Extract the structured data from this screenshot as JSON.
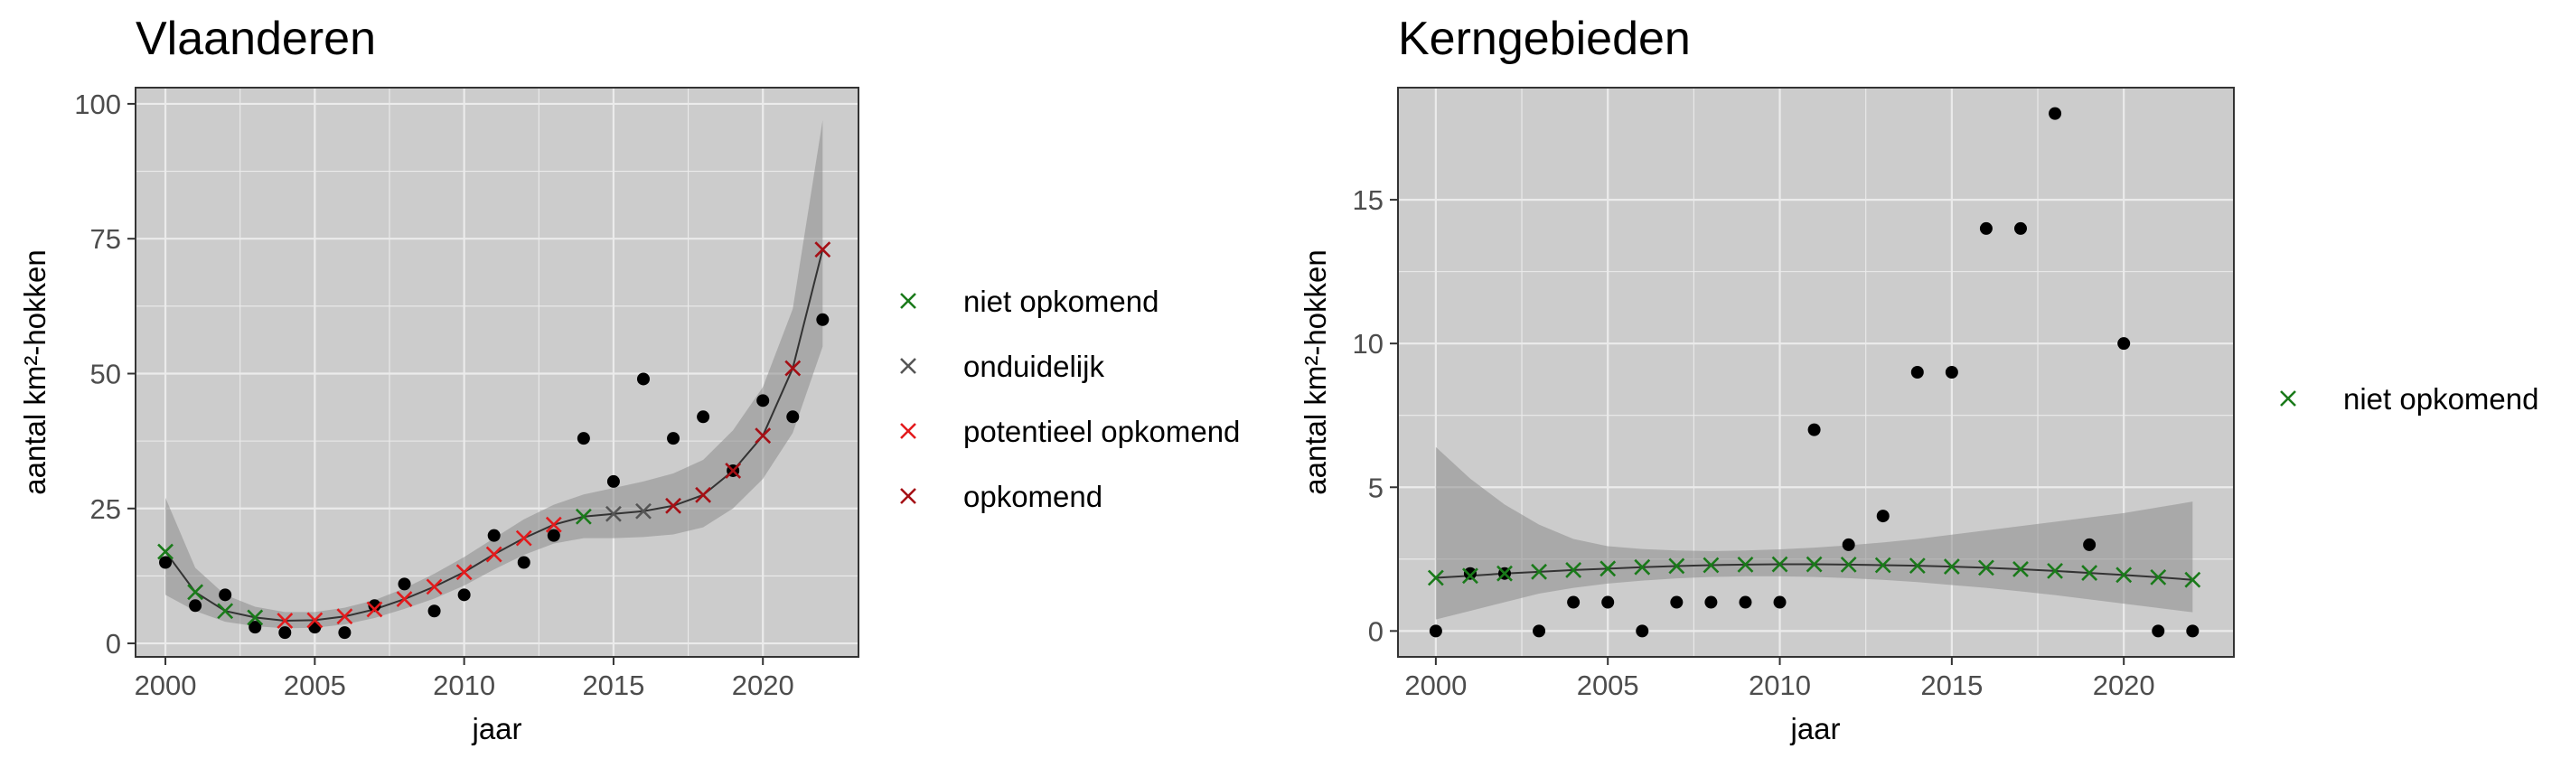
{
  "chart_data": [
    {
      "type": "scatter",
      "title": "Vlaanderen",
      "xlabel": "jaar",
      "ylabel": "aantal km²-hokken",
      "xlim": [
        1999,
        2023.2
      ],
      "ylim": [
        -2.5,
        103
      ],
      "x_ticks": [
        2000,
        2005,
        2010,
        2015,
        2020
      ],
      "y_ticks": [
        0,
        25,
        50,
        75,
        100
      ],
      "grid": true,
      "legend_position": "right",
      "legend": [
        {
          "label": "niet opkomend",
          "color": "#1a7a1a"
        },
        {
          "label": "onduidelijk",
          "color": "#555555"
        },
        {
          "label": "potentieel opkomend",
          "color": "#e31a1c"
        },
        {
          "label": "opkomend",
          "color": "#a50f15"
        }
      ],
      "observed": {
        "x": [
          2000,
          2001,
          2002,
          2003,
          2004,
          2005,
          2006,
          2007,
          2008,
          2009,
          2010,
          2011,
          2012,
          2013,
          2014,
          2015,
          2016,
          2017,
          2018,
          2019,
          2020,
          2021,
          2022
        ],
        "y": [
          15,
          7,
          9,
          3,
          2,
          3,
          2,
          7,
          11,
          6,
          9,
          20,
          15,
          20,
          38,
          30,
          49,
          38,
          42,
          32,
          45,
          42,
          60
        ]
      },
      "fitted": {
        "x": [
          2000,
          2001,
          2002,
          2003,
          2004,
          2005,
          2006,
          2007,
          2008,
          2009,
          2010,
          2011,
          2012,
          2013,
          2014,
          2015,
          2016,
          2017,
          2018,
          2019,
          2020,
          2021,
          2022
        ],
        "y": [
          17,
          9.5,
          6,
          4.8,
          4.2,
          4.3,
          5,
          6.3,
          8.2,
          10.5,
          13.2,
          16.5,
          19.5,
          22,
          23.5,
          24,
          24.5,
          25.5,
          27.5,
          32,
          38.5,
          51,
          73
        ],
        "lower": [
          9,
          6,
          4,
          3.2,
          2.8,
          2.9,
          3.5,
          4.7,
          6.4,
          8.3,
          10.7,
          13.7,
          16.4,
          18.5,
          19.5,
          19.5,
          19.7,
          20.2,
          21.5,
          25,
          30.5,
          39,
          55
        ],
        "upper": [
          27,
          14,
          9,
          6.8,
          5.8,
          5.8,
          6.6,
          8,
          10.2,
          12.9,
          16,
          19.5,
          23,
          25.7,
          27.6,
          28.8,
          30,
          31.5,
          34,
          39.5,
          47.5,
          62,
          97
        ],
        "status": [
          "niet opkomend",
          "niet opkomend",
          "niet opkomend",
          "niet opkomend",
          "potentieel opkomend",
          "potentieel opkomend",
          "potentieel opkomend",
          "potentieel opkomend",
          "potentieel opkomend",
          "potentieel opkomend",
          "potentieel opkomend",
          "potentieel opkomend",
          "potentieel opkomend",
          "potentieel opkomend",
          "niet opkomend",
          "onduidelijk",
          "onduidelijk",
          "opkomend",
          "opkomend",
          "opkomend",
          "opkomend",
          "opkomend",
          "opkomend"
        ]
      }
    },
    {
      "type": "scatter",
      "title": "Kerngebieden",
      "xlabel": "jaar",
      "ylabel": "aantal km²-hokken",
      "xlim": [
        1998.9,
        2023.2
      ],
      "ylim": [
        -0.9,
        18.9
      ],
      "x_ticks": [
        2000,
        2005,
        2010,
        2015,
        2020
      ],
      "y_ticks": [
        0,
        5,
        10,
        15
      ],
      "grid": true,
      "legend_position": "right",
      "legend": [
        {
          "label": "niet opkomend",
          "color": "#1a7a1a"
        }
      ],
      "observed": {
        "x": [
          2000,
          2001,
          2002,
          2003,
          2004,
          2005,
          2006,
          2007,
          2008,
          2009,
          2010,
          2011,
          2012,
          2013,
          2014,
          2015,
          2016,
          2017,
          2018,
          2019,
          2020,
          2021,
          2022
        ],
        "y": [
          0,
          2,
          2,
          0,
          1,
          1,
          0,
          1,
          1,
          1,
          1,
          7,
          3,
          4,
          9,
          9,
          14,
          14,
          18,
          3,
          10,
          0,
          0
        ]
      },
      "fitted": {
        "x": [
          2000,
          2001,
          2002,
          2003,
          2004,
          2005,
          2006,
          2007,
          2008,
          2009,
          2010,
          2011,
          2012,
          2013,
          2014,
          2015,
          2016,
          2017,
          2018,
          2019,
          2020,
          2021,
          2022
        ],
        "y": [
          1.85,
          1.92,
          2,
          2.06,
          2.12,
          2.17,
          2.22,
          2.26,
          2.29,
          2.31,
          2.32,
          2.32,
          2.31,
          2.29,
          2.27,
          2.24,
          2.2,
          2.15,
          2.09,
          2.02,
          1.95,
          1.87,
          1.78
        ],
        "lower": [
          0.4,
          0.7,
          1,
          1.3,
          1.5,
          1.65,
          1.75,
          1.83,
          1.88,
          1.9,
          1.9,
          1.88,
          1.84,
          1.78,
          1.7,
          1.6,
          1.5,
          1.38,
          1.25,
          1.1,
          0.95,
          0.8,
          0.65
        ],
        "upper": [
          6.4,
          5.3,
          4.4,
          3.7,
          3.2,
          2.95,
          2.85,
          2.8,
          2.78,
          2.8,
          2.84,
          2.9,
          2.98,
          3.08,
          3.2,
          3.35,
          3.5,
          3.65,
          3.8,
          3.95,
          4.1,
          4.3,
          4.5
        ],
        "status": [
          "niet opkomend",
          "niet opkomend",
          "niet opkomend",
          "niet opkomend",
          "niet opkomend",
          "niet opkomend",
          "niet opkomend",
          "niet opkomend",
          "niet opkomend",
          "niet opkomend",
          "niet opkomend",
          "niet opkomend",
          "niet opkomend",
          "niet opkomend",
          "niet opkomend",
          "niet opkomend",
          "niet opkomend",
          "niet opkomend",
          "niet opkomend",
          "niet opkomend",
          "niet opkomend",
          "niet opkomend",
          "niet opkomend"
        ]
      }
    }
  ]
}
